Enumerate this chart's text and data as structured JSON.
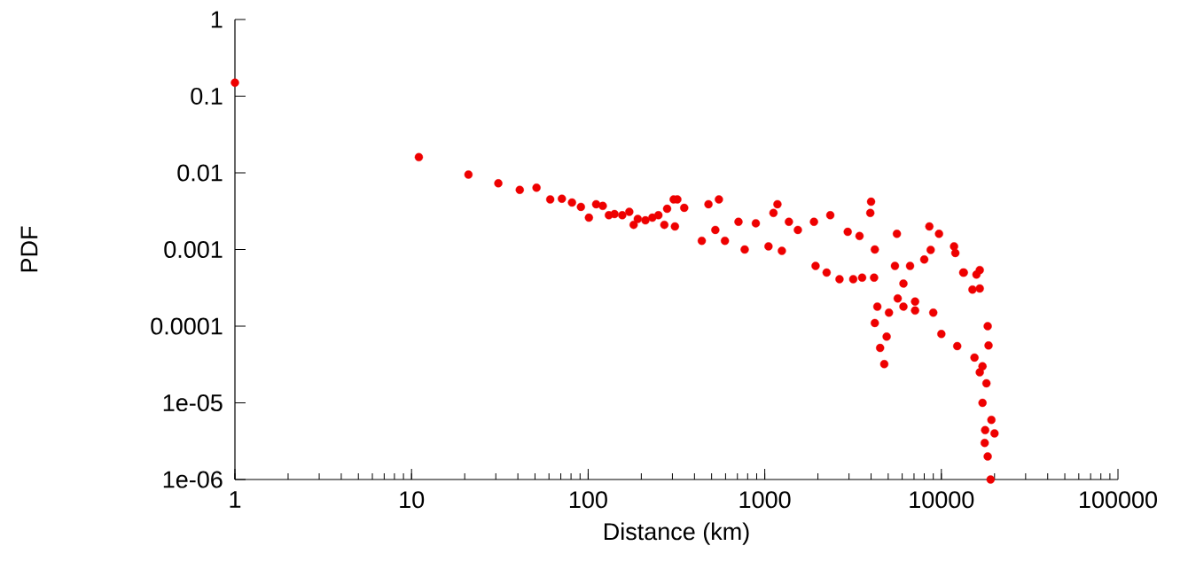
{
  "chart_data": {
    "type": "scatter",
    "xlabel": "Distance (km)",
    "ylabel": "PDF",
    "color": "#ee0000",
    "log": "xy",
    "xlim": [
      1,
      100000
    ],
    "ylim": [
      1e-06,
      1
    ],
    "xticks": [
      1,
      10,
      100,
      1000,
      10000,
      100000
    ],
    "yticks": [
      1,
      0.1,
      0.01,
      0.001,
      0.0001,
      {
        "value": 1e-05,
        "label": "1e-05"
      },
      {
        "value": 1e-06,
        "label": "1e-06"
      }
    ],
    "x": [
      1,
      11,
      21,
      31,
      41,
      51,
      61,
      71,
      81,
      91,
      101,
      111,
      121,
      131,
      141,
      156,
      171,
      181,
      191,
      211,
      231,
      250,
      270,
      280,
      305,
      310,
      320,
      350,
      440,
      480,
      525,
      550,
      595,
      710,
      770,
      890,
      1050,
      1120,
      1180,
      1250,
      1370,
      1540,
      1900,
      1940,
      2240,
      2350,
      2650,
      2950,
      3170,
      3440,
      3560,
      3960,
      4000,
      4160,
      4200,
      4200,
      4340,
      4500,
      4750,
      4900,
      5050,
      5460,
      5600,
      5660,
      6100,
      6100,
      6650,
      7100,
      7100,
      8000,
      8550,
      8700,
      9000,
      9700,
      10000,
      11800,
      12000,
      12300,
      13300,
      13400,
      15000,
      15400,
      15800,
      16500,
      16500,
      16500,
      17100,
      17100,
      17600,
      17700,
      18000,
      18300,
      18300,
      18500,
      19000,
      19200,
      20000
    ],
    "values": [
      0.15,
      0.016,
      0.0095,
      0.0073,
      0.006,
      0.0064,
      0.0045,
      0.0046,
      0.0041,
      0.0036,
      0.0026,
      0.0039,
      0.0037,
      0.0028,
      0.0029,
      0.0028,
      0.0031,
      0.0021,
      0.0025,
      0.0024,
      0.0026,
      0.0028,
      0.0021,
      0.0034,
      0.0045,
      0.002,
      0.0045,
      0.0035,
      0.0013,
      0.0039,
      0.0018,
      0.0045,
      0.0013,
      0.0023,
      0.001,
      0.0022,
      0.0011,
      0.003,
      0.0039,
      0.00096,
      0.0023,
      0.0018,
      0.0023,
      0.00061,
      0.0005,
      0.0028,
      0.00041,
      0.0017,
      0.00041,
      0.0015,
      0.00043,
      0.003,
      0.0042,
      0.00043,
      0.001,
      0.00011,
      0.00018,
      5.2e-05,
      3.2e-05,
      7.3e-05,
      0.00015,
      0.00061,
      0.0016,
      0.00023,
      0.00036,
      0.00018,
      0.00061,
      0.00021,
      0.00016,
      0.00074,
      0.002,
      0.00099,
      0.00015,
      0.0016,
      7.9e-05,
      0.0011,
      0.0009,
      5.5e-05,
      0.0005,
      0.0005,
      0.0003,
      3.9e-05,
      0.00047,
      0.00054,
      0.00031,
      2.5e-05,
      1e-05,
      3e-05,
      3e-06,
      4.4e-06,
      1.8e-05,
      0.0001,
      2e-06,
      5.6e-05,
      1e-06,
      6e-06,
      4e-06
    ]
  }
}
